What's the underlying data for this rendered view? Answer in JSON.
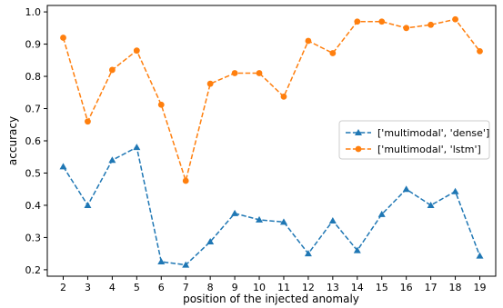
{
  "chart_data": {
    "type": "line",
    "title": "",
    "xlabel": "position of the injected anomaly",
    "ylabel": "accuracy",
    "x": [
      2,
      3,
      4,
      5,
      6,
      7,
      8,
      9,
      10,
      11,
      12,
      13,
      14,
      15,
      16,
      17,
      18,
      19
    ],
    "xlim": [
      1.35,
      19.65
    ],
    "ylim": [
      0.18,
      1.02
    ],
    "yticks": [
      0.2,
      0.3,
      0.4,
      0.5,
      0.6,
      0.7,
      0.8,
      0.9,
      1.0
    ],
    "ytick_labels": [
      "0.2",
      "0.3",
      "0.4",
      "0.5",
      "0.6",
      "0.7",
      "0.8",
      "0.9",
      "1.0"
    ],
    "grid": false,
    "legend_position": "center-right",
    "series": [
      {
        "name": "['multimodal', 'dense']",
        "color": "#1f77b4",
        "marker": "triangle",
        "linestyle": "dashed",
        "values": [
          0.52,
          0.4,
          0.54,
          0.58,
          0.225,
          0.215,
          0.287,
          0.375,
          0.355,
          0.348,
          0.25,
          0.352,
          0.26,
          0.372,
          0.45,
          0.4,
          0.443,
          0.243
        ]
      },
      {
        "name": "['multimodal', 'lstm']",
        "color": "#ff7f0e",
        "marker": "circle",
        "linestyle": "dashed",
        "values": [
          0.92,
          0.66,
          0.82,
          0.88,
          0.712,
          0.476,
          0.777,
          0.81,
          0.81,
          0.737,
          0.91,
          0.872,
          0.97,
          0.97,
          0.95,
          0.96,
          0.977,
          0.878
        ]
      }
    ]
  }
}
